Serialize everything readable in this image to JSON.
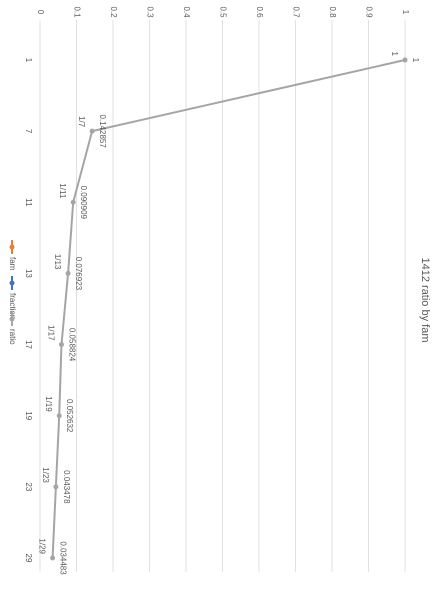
{
  "chart_data": {
    "type": "line",
    "title": "1412 ratio by fam",
    "categories": [
      "1",
      "7",
      "11",
      "13",
      "17",
      "19",
      "23",
      "29"
    ],
    "series": [
      {
        "name": "ratio",
        "color": "#a5a5a5",
        "values": [
          1,
          0.142857,
          0.090909,
          0.076923,
          0.058824,
          0.052632,
          0.043478,
          0.034483
        ]
      }
    ],
    "point_labels": [
      "1",
      "1/7",
      "1/11",
      "1/13",
      "1/17",
      "1/19",
      "1/23",
      "1/29"
    ],
    "legend": [
      {
        "name": "fam",
        "color": "#ed7d31"
      },
      {
        "name": "fraction",
        "color": "#4472c4"
      },
      {
        "name": "ratio",
        "color": "#a5a5a5"
      }
    ],
    "ylim": [
      0,
      1
    ],
    "yticks": [
      0,
      0.1,
      0.2,
      0.3,
      0.4,
      0.5,
      0.6,
      0.7,
      0.8,
      0.9,
      1
    ],
    "grid": true,
    "rotation": 90
  }
}
